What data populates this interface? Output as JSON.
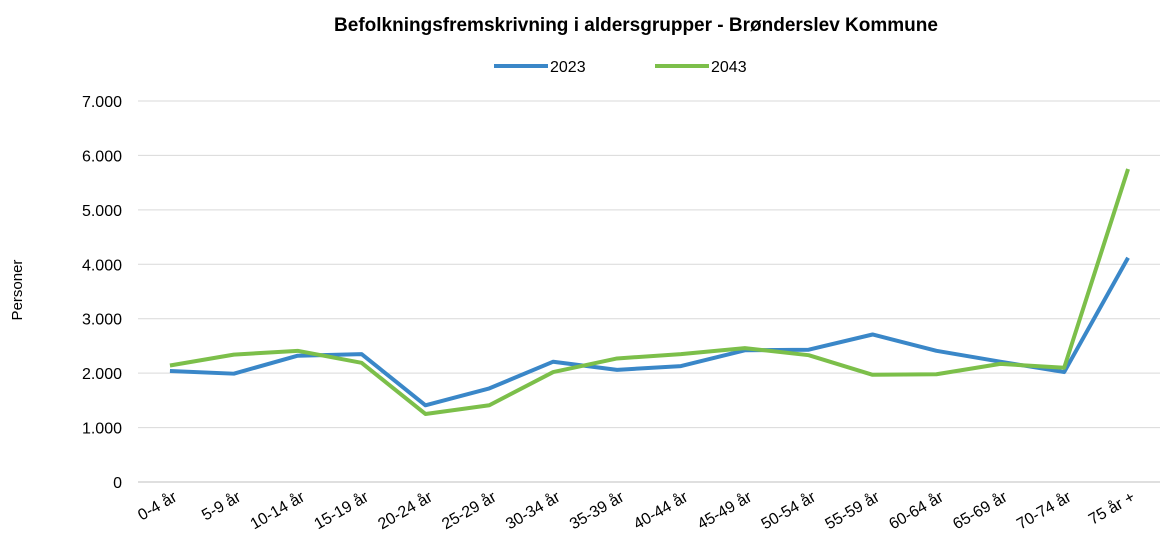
{
  "chart_data": {
    "type": "line",
    "title": "Befolkningsfremskrivning i aldersgrupper - Brønderslev Kommune",
    "y_label": "Personer",
    "categories": [
      "0-4 år",
      "5-9 år",
      "10-14 år",
      "15-19 år",
      "20-24 år",
      "25-29 år",
      "30-34 år",
      "35-39 år",
      "40-44 år",
      "45-49 år",
      "50-54 år",
      "55-59 år",
      "60-64 år",
      "65-69 år",
      "70-74 år",
      "75 år +"
    ],
    "series": [
      {
        "name": "2023",
        "color": "#3a87c8",
        "values": [
          2040,
          1990,
          2320,
          2350,
          1410,
          1720,
          2210,
          2060,
          2130,
          2420,
          2430,
          2710,
          2410,
          2210,
          2020,
          4120
        ]
      },
      {
        "name": "2043",
        "color": "#7cbf4a",
        "values": [
          2140,
          2340,
          2410,
          2190,
          1250,
          1410,
          2020,
          2270,
          2350,
          2460,
          2330,
          1970,
          1980,
          2170,
          2100,
          5750
        ]
      }
    ],
    "ylim": [
      0,
      7000
    ],
    "yticks": [
      0,
      {
        "value": 1000,
        "label": "1.000"
      },
      {
        "value": 2000,
        "label": "2.000"
      },
      {
        "value": 3000,
        "label": "3.000"
      },
      {
        "value": 4000,
        "label": "4.000"
      },
      {
        "value": 5000,
        "label": "5.000"
      },
      {
        "value": 6000,
        "label": "6.000"
      },
      {
        "value": 7000,
        "label": "7.000"
      }
    ],
    "grid": true,
    "legend": "top"
  }
}
